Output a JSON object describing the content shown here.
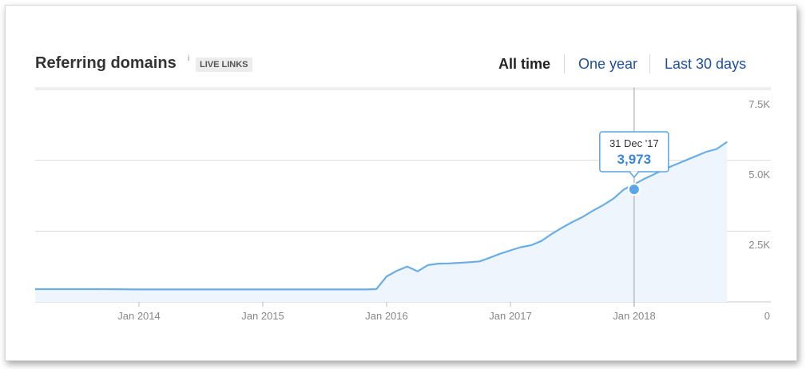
{
  "header": {
    "title": "Referring domains",
    "info_icon": "i",
    "badge": "LIVE LINKS"
  },
  "periods": [
    {
      "label": "All time",
      "active": true
    },
    {
      "label": "One year",
      "active": false
    },
    {
      "label": "Last 30 days",
      "active": false
    }
  ],
  "tooltip": {
    "date": "31 Dec '17",
    "value": "3,973"
  },
  "colors": {
    "line": "#6aaee8",
    "fill": "#eef5fd",
    "tooltip_border": "#5aa5e6",
    "tooltip_value": "#3a86d8",
    "grid": "#dcdcdc",
    "axis_text": "#888888"
  },
  "chart_data": {
    "type": "area",
    "title": "Referring domains",
    "xlabel": "",
    "ylabel": "",
    "x_ticks": [
      "Jan 2014",
      "Jan 2015",
      "Jan 2016",
      "Jan 2017",
      "Jan 2018"
    ],
    "y_ticks": [
      "0",
      "2.5K",
      "5.0K",
      "7.5K"
    ],
    "ylim": [
      0,
      7500
    ],
    "grid": true,
    "series": [
      {
        "x": [
          "2013-03",
          "2013-06",
          "2013-09",
          "2014-01",
          "2014-04",
          "2014-07",
          "2014-10",
          "2015-01",
          "2015-04",
          "2015-07",
          "2015-10",
          "2015-11",
          "2015-12",
          "2016-01",
          "2016-02",
          "2016-03",
          "2016-04",
          "2016-05",
          "2016-06",
          "2016-07",
          "2016-08",
          "2016-09",
          "2016-10",
          "2016-11",
          "2016-12",
          "2017-01",
          "2017-02",
          "2017-03",
          "2017-04",
          "2017-05",
          "2017-06",
          "2017-07",
          "2017-08",
          "2017-09",
          "2017-10",
          "2017-11",
          "2017-12",
          "2018-01",
          "2018-02",
          "2018-03",
          "2018-04",
          "2018-05",
          "2018-06",
          "2018-07",
          "2018-08",
          "2018-09",
          "2018-10"
        ],
        "y": [
          450,
          450,
          450,
          440,
          440,
          440,
          440,
          440,
          440,
          440,
          440,
          440,
          450,
          900,
          1100,
          1250,
          1080,
          1300,
          1350,
          1360,
          1380,
          1400,
          1430,
          1560,
          1700,
          1820,
          1930,
          2000,
          2150,
          2400,
          2620,
          2820,
          3000,
          3220,
          3420,
          3650,
          3973,
          4150,
          4350,
          4520,
          4700,
          4850,
          5000,
          5150,
          5300,
          5400,
          5650
        ]
      }
    ],
    "highlight": {
      "x": "2017-12-31",
      "y": 3973
    }
  }
}
